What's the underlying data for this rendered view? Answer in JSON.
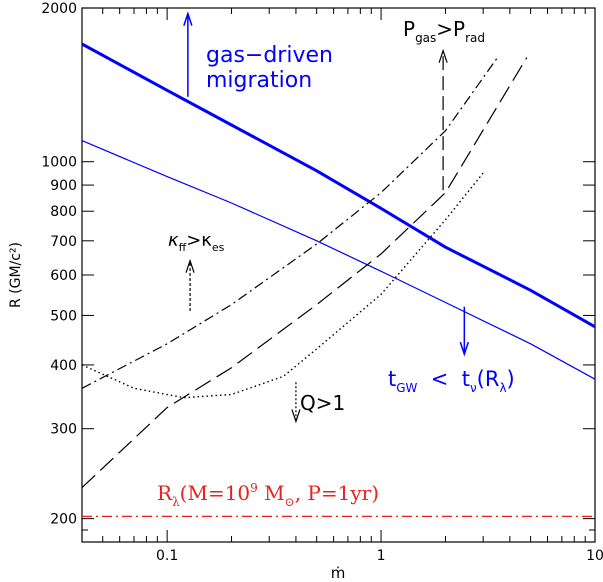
{
  "chart_data": {
    "type": "line",
    "xlabel": "ṁ",
    "ylabel": "R (GM/c²)",
    "xscale": "log",
    "yscale": "log",
    "xlim": [
      0.04,
      10
    ],
    "ylim": [
      180,
      2000
    ],
    "x_ticks": [
      {
        "value": 0.1,
        "label": "0.1"
      },
      {
        "value": 1,
        "label": "1"
      },
      {
        "value": 10,
        "label": "10"
      }
    ],
    "y_ticks": [
      {
        "value": 200,
        "label": "200"
      },
      {
        "value": 300,
        "label": "300"
      },
      {
        "value": 400,
        "label": "400"
      },
      {
        "value": 500,
        "label": "500"
      },
      {
        "value": 600,
        "label": "600"
      },
      {
        "value": 700,
        "label": "700"
      },
      {
        "value": 800,
        "label": "800"
      },
      {
        "value": 900,
        "label": "900"
      },
      {
        "value": 1000,
        "label": "1000"
      },
      {
        "value": 2000,
        "label": "2000"
      }
    ],
    "grid": false,
    "series": [
      {
        "id": "thick-blue",
        "color": "#0000ff",
        "style": "solid-thick",
        "x": [
          0.04,
          0.1,
          0.2,
          0.5,
          1,
          2,
          5,
          10
        ],
        "y": [
          1700,
          1380,
          1180,
          960,
          810,
          680,
          560,
          475
        ]
      },
      {
        "id": "thin-blue",
        "color": "#0000ff",
        "style": "solid-thin",
        "x": [
          0.04,
          0.1,
          0.2,
          0.5,
          1,
          2,
          5,
          10
        ],
        "y": [
          1100,
          935,
          830,
          700,
          610,
          530,
          440,
          375
        ]
      },
      {
        "id": "dash-dot",
        "color": "#000000",
        "style": "dash-dot",
        "x": [
          0.04,
          0.1,
          0.2,
          0.5,
          1,
          2,
          3.5
        ],
        "y": [
          360,
          440,
          525,
          690,
          870,
          1150,
          1600
        ]
      },
      {
        "id": "long-dash",
        "color": "#000000",
        "style": "long-dash",
        "x": [
          0.04,
          0.1,
          0.2,
          0.5,
          1,
          2,
          4.8
        ],
        "y": [
          230,
          330,
          395,
          525,
          660,
          870,
          1600
        ]
      },
      {
        "id": "dotted",
        "color": "#000000",
        "style": "dotted",
        "x": [
          0.04,
          0.07,
          0.12,
          0.2,
          0.35,
          0.5,
          1,
          2,
          3
        ],
        "y": [
          400,
          360,
          345,
          350,
          380,
          430,
          550,
          770,
          950
        ]
      },
      {
        "id": "red-dash-dot",
        "color": "#e8201e",
        "style": "dash-dot",
        "x": [
          0.04,
          10
        ],
        "y": [
          202,
          202
        ]
      }
    ],
    "annotations": [
      {
        "id": "gas-driven",
        "text": [
          "gas−driven",
          "migration"
        ],
        "x": 0.15,
        "y": 1650,
        "color": "#0000ff",
        "arrow": {
          "x": 0.125,
          "y_from": 1340,
          "y_to": 1950
        }
      },
      {
        "id": "pgas",
        "text": [
          "P",
          "gas",
          ">P",
          "rad"
        ],
        "x": 1.3,
        "y": 1850,
        "color": "#000000",
        "arrow": {
          "x": 1.95,
          "y_from": 880,
          "y_to": 1650
        }
      },
      {
        "id": "kappa",
        "text": [
          "κ",
          "ff",
          ">κ",
          "es"
        ],
        "x": 0.11,
        "y": 640,
        "color": "#000000",
        "arrow": {
          "x": 0.128,
          "y_from": 510,
          "y_to": 640
        }
      },
      {
        "id": "tgw",
        "text": [
          "t",
          "GW",
          "  <  t",
          "ν",
          "(R",
          "λ",
          ")"
        ],
        "x": 1.05,
        "y": 375,
        "color": "#0000ff",
        "arrow": {
          "x": 2.45,
          "y_from": 520,
          "y_to": 420
        }
      },
      {
        "id": "q",
        "text": [
          "Q>1"
        ],
        "x": 0.42,
        "y": 320,
        "color": "#000000",
        "arrow": {
          "x": 0.4,
          "y_from": 370,
          "y_to": 310
        }
      },
      {
        "id": "rlambda",
        "text": [
          "R",
          "λ",
          "(M=10",
          "9",
          " M",
          "⊙",
          ", P=1yr)"
        ],
        "x": 0.11,
        "y": 212,
        "color": "#e8201e"
      }
    ]
  }
}
